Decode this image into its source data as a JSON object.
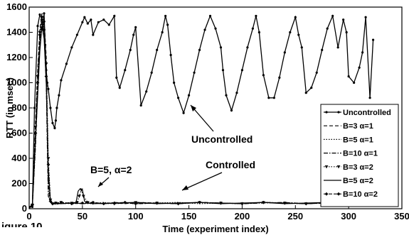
{
  "figure_caption": "igure 10",
  "chart_data": {
    "type": "line",
    "title": "",
    "xlabel": "Time (experiment index)",
    "ylabel": "RTT (in msec)",
    "xlim": [
      0,
      350
    ],
    "ylim": [
      0,
      1600
    ],
    "xticks": [
      0,
      50,
      100,
      150,
      200,
      250,
      300,
      350
    ],
    "yticks": [
      0,
      200,
      400,
      600,
      800,
      1000,
      1200,
      1400,
      1600
    ],
    "grid": false,
    "legend_position": "right",
    "series": [
      {
        "name": "Uncontrolled",
        "label_html": "Uncontrolled",
        "style": "solid-dot",
        "x": [
          0,
          3,
          5,
          8,
          10,
          12,
          13,
          14,
          15,
          16,
          17,
          18,
          20,
          22,
          24,
          25,
          26,
          28,
          30,
          35,
          40,
          45,
          50,
          52,
          55,
          58,
          60,
          65,
          70,
          75,
          80,
          82,
          85,
          90,
          95,
          98,
          100,
          105,
          110,
          115,
          120,
          125,
          128,
          130,
          133,
          136,
          140,
          145,
          150,
          155,
          160,
          165,
          170,
          175,
          180,
          182,
          185,
          190,
          195,
          200,
          205,
          210,
          213,
          216,
          220,
          225,
          230,
          235,
          240,
          245,
          250,
          253,
          256,
          260,
          265,
          270,
          275,
          280,
          285,
          290,
          295,
          298,
          300,
          305,
          310,
          313,
          316,
          320,
          323
        ],
        "values": [
          15,
          15,
          800,
          1450,
          1540,
          1500,
          1420,
          1550,
          1300,
          1100,
          1000,
          950,
          800,
          680,
          640,
          700,
          800,
          900,
          1020,
          1150,
          1280,
          1380,
          1480,
          1520,
          1470,
          1500,
          1380,
          1480,
          1500,
          1460,
          1530,
          1040,
          960,
          1100,
          1260,
          1380,
          1440,
          820,
          930,
          1080,
          1260,
          1400,
          1530,
          1460,
          1220,
          1000,
          880,
          760,
          900,
          1080,
          1260,
          1420,
          1530,
          1430,
          1280,
          1100,
          900,
          780,
          920,
          1100,
          1280,
          1430,
          1530,
          1400,
          1060,
          880,
          880,
          1040,
          1240,
          1400,
          1520,
          1380,
          1280,
          920,
          960,
          1080,
          1260,
          1430,
          1530,
          1280,
          1500,
          1400,
          1050,
          1000,
          1120,
          1240,
          1520,
          880,
          1340
        ]
      },
      {
        "name": "B=3 α=1",
        "label_html": "B=3 α=1",
        "style": "dash",
        "x": [
          0,
          3,
          6,
          8,
          10,
          12,
          14,
          16,
          17,
          18,
          20,
          22,
          25,
          28,
          30,
          35,
          40,
          50,
          60,
          70,
          80,
          90,
          100,
          120,
          140,
          160,
          180,
          200,
          220,
          240,
          260,
          280,
          300,
          320,
          323
        ],
        "values": [
          10,
          30,
          700,
          1100,
          1420,
          1550,
          1500,
          1200,
          700,
          200,
          60,
          40,
          35,
          40,
          45,
          40,
          45,
          40,
          50,
          40,
          45,
          40,
          50,
          45,
          40,
          50,
          45,
          40,
          50,
          45,
          40,
          50,
          45,
          40,
          45
        ]
      },
      {
        "name": "B=5 α=1",
        "label_html": "B=5 α=1",
        "style": "dot",
        "x": [
          0,
          3,
          6,
          8,
          10,
          12,
          14,
          16,
          17,
          18,
          20,
          22,
          25,
          30,
          40,
          50,
          60,
          70,
          80,
          90,
          100,
          120,
          140,
          160,
          180,
          200,
          220,
          240,
          260,
          280,
          300,
          320,
          323
        ],
        "values": [
          10,
          40,
          600,
          1000,
          1350,
          1500,
          1450,
          1100,
          600,
          150,
          50,
          40,
          40,
          45,
          40,
          45,
          40,
          50,
          40,
          45,
          40,
          45,
          50,
          40,
          45,
          40,
          50,
          45,
          40,
          50,
          45,
          40,
          45
        ]
      },
      {
        "name": "B=10 α=1",
        "label_html": "B=10 α=1",
        "style": "dashdot",
        "x": [
          0,
          3,
          6,
          8,
          10,
          12,
          14,
          16,
          17,
          18,
          20,
          22,
          25,
          30,
          40,
          50,
          60,
          70,
          80,
          90,
          100,
          120,
          140,
          160,
          180,
          200,
          220,
          240,
          260,
          280,
          300,
          320,
          323
        ],
        "values": [
          10,
          20,
          500,
          950,
          1300,
          1480,
          1400,
          1000,
          500,
          100,
          50,
          40,
          45,
          40,
          50,
          40,
          45,
          40,
          50,
          45,
          40,
          45,
          40,
          50,
          45,
          40,
          45,
          50,
          40,
          45,
          50,
          40,
          45
        ]
      },
      {
        "name": "B=3 α=2",
        "label_html": "B=3 α=2",
        "style": "dot-triangle",
        "x": [
          0,
          3,
          6,
          8,
          10,
          12,
          14,
          16,
          18,
          20,
          22,
          25,
          30,
          40,
          45,
          47,
          49,
          51,
          55,
          60,
          80,
          100,
          120,
          140,
          160,
          180,
          200,
          220,
          240,
          260,
          280,
          300,
          320,
          323
        ],
        "values": [
          10,
          30,
          650,
          1050,
          1400,
          1520,
          1480,
          1150,
          400,
          70,
          40,
          45,
          50,
          45,
          50,
          100,
          150,
          100,
          50,
          45,
          40,
          50,
          45,
          40,
          50,
          45,
          40,
          50,
          45,
          40,
          50,
          45,
          40,
          45
        ]
      },
      {
        "name": "B=5 α=2",
        "label_html": "B=5 α=2",
        "style": "solid",
        "x": [
          0,
          3,
          6,
          8,
          10,
          12,
          14,
          16,
          18,
          20,
          22,
          25,
          30,
          40,
          44,
          46,
          48,
          50,
          52,
          55,
          60,
          80,
          100,
          120,
          140,
          160,
          180,
          200,
          220,
          240,
          260,
          280,
          300,
          320,
          323
        ],
        "values": [
          10,
          20,
          550,
          900,
          1250,
          1450,
          1350,
          1000,
          300,
          60,
          40,
          45,
          40,
          45,
          50,
          140,
          160,
          150,
          60,
          45,
          40,
          45,
          50,
          40,
          45,
          50,
          40,
          45,
          50,
          40,
          45,
          50,
          40,
          45,
          40
        ]
      },
      {
        "name": "B=10 α=2",
        "label_html": "B=10 α=2",
        "style": "dash-diamond",
        "x": [
          0,
          3,
          6,
          8,
          10,
          12,
          14,
          16,
          18,
          20,
          22,
          25,
          30,
          40,
          50,
          60,
          70,
          80,
          90,
          100,
          120,
          140,
          160,
          180,
          200,
          220,
          240,
          260,
          280,
          300,
          320,
          323
        ],
        "values": [
          10,
          30,
          600,
          1000,
          1380,
          1500,
          1420,
          1050,
          350,
          60,
          40,
          45,
          50,
          40,
          45,
          50,
          40,
          45,
          50,
          40,
          45,
          40,
          50,
          45,
          40,
          50,
          45,
          40,
          45,
          50,
          40,
          45
        ]
      }
    ],
    "annotations": [
      {
        "id": "uncontrolled",
        "text": "Uncontrolled"
      },
      {
        "id": "controlled",
        "text": "Controlled"
      },
      {
        "id": "b5a2",
        "text": "B=5, α=2"
      }
    ]
  }
}
